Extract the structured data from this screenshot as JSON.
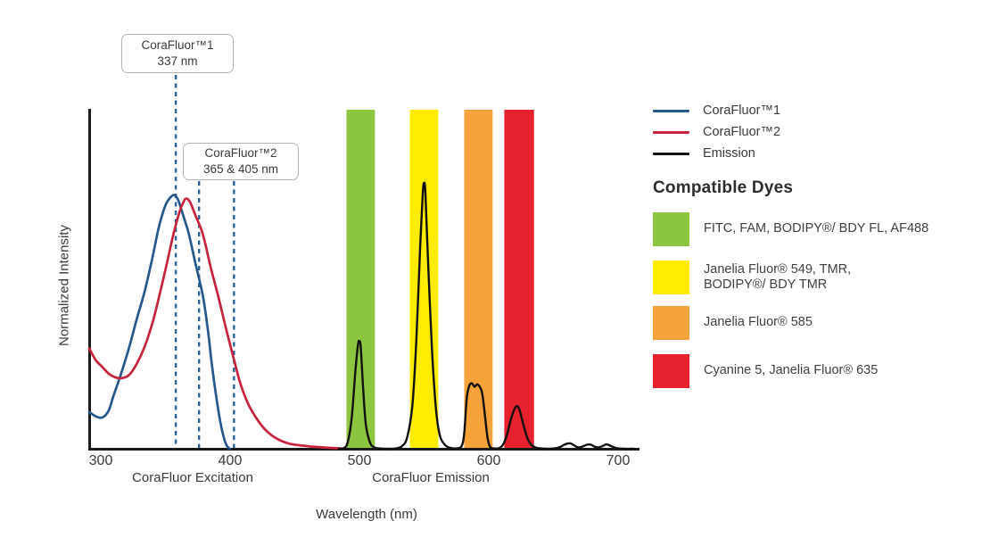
{
  "axes": {
    "y_label": "Normalized Intensity",
    "x_label": "Wavelength (nm)",
    "x_section_left": "CoraFluor Excitation",
    "x_section_right": "CoraFluor Emission",
    "x_ticks": [
      "300",
      "400",
      "500",
      "600",
      "700"
    ],
    "text_color": "#3a3a3a",
    "axis_color": "#1a1a1a"
  },
  "annotations": [
    {
      "title": "CoraFluor™1",
      "value": "337 nm"
    },
    {
      "title": "CoraFluor™2",
      "value": "365 & 405 nm"
    }
  ],
  "legend": {
    "items": [
      {
        "label": "CoraFluor™1",
        "color": "#25598E"
      },
      {
        "label": "CoraFluor™2",
        "color": "#C8233C"
      },
      {
        "label": "Emission",
        "color": "#111111"
      }
    ]
  },
  "compatible_dyes": {
    "title": "Compatible Dyes",
    "items": [
      {
        "name": "green-filter",
        "color": "#8CC540",
        "lines": [
          "FITC, FAM, BODIPY®/ BDY FL, AF488"
        ]
      },
      {
        "name": "yellow-filter",
        "color": "#FFEC00",
        "lines": [
          "Janelia Fluor® 549, TMR,",
          "BODIPY®/ BDY TMR"
        ]
      },
      {
        "name": "orange-filter",
        "color": "#F5A23B",
        "lines": [
          "Janelia Fluor® 585"
        ]
      },
      {
        "name": "red-filter",
        "color": "#E8212E",
        "lines": [
          "Cyanine 5, Janelia Fluor® 635"
        ]
      }
    ]
  },
  "chart_data": {
    "type": "line",
    "title": "",
    "xlabel": "Wavelength (nm)",
    "ylabel": "Normalized Intensity",
    "x_ticks_nm": [
      300,
      400,
      500,
      600,
      700
    ],
    "ylim": [
      0,
      1
    ],
    "grid": false,
    "dashed_guides": [
      {
        "x_nm": 358,
        "links_to": "CoraFluor™1 337 nm"
      },
      {
        "x_nm": 376,
        "links_to": "CoraFluor™2 365 nm"
      },
      {
        "x_nm": 403,
        "links_to": "CoraFluor™2 405 nm"
      }
    ],
    "filter_bands_nm": [
      {
        "name": "FITC, FAM, BODIPY®/ BDY FL, AF488",
        "color": "#8CC540",
        "from": 490,
        "to": 512
      },
      {
        "name": "Janelia Fluor® 549, TMR, BODIPY®/ BDY TMR",
        "color": "#FFEC00",
        "from": 539,
        "to": 561
      },
      {
        "name": "Janelia Fluor® 585",
        "color": "#F5A23B",
        "from": 581,
        "to": 603
      },
      {
        "name": "Cyanine 5, Janelia Fluor® 635",
        "color": "#E8212E",
        "from": 612,
        "to": 635
      }
    ],
    "series": [
      {
        "name": "CoraFluor™1 excitation",
        "color": "#25598E",
        "points": [
          [
            291,
            0.108
          ],
          [
            296,
            0.096
          ],
          [
            301,
            0.092
          ],
          [
            306,
            0.112
          ],
          [
            310,
            0.158
          ],
          [
            316,
            0.225
          ],
          [
            322,
            0.3
          ],
          [
            328,
            0.385
          ],
          [
            334,
            0.465
          ],
          [
            340,
            0.565
          ],
          [
            345,
            0.655
          ],
          [
            350,
            0.718
          ],
          [
            354,
            0.742
          ],
          [
            357,
            0.748
          ],
          [
            360,
            0.732
          ],
          [
            364,
            0.685
          ],
          [
            368,
            0.635
          ],
          [
            373,
            0.55
          ],
          [
            379,
            0.45
          ],
          [
            383,
            0.345
          ],
          [
            386,
            0.245
          ],
          [
            390,
            0.135
          ],
          [
            393,
            0.068
          ],
          [
            396,
            0.022
          ],
          [
            398,
            0.006
          ],
          [
            400,
            0
          ]
        ]
      },
      {
        "name": "CoraFluor™2 excitation",
        "color": "#C8233C",
        "points": [
          [
            291,
            0.297
          ],
          [
            296,
            0.262
          ],
          [
            301,
            0.242
          ],
          [
            306,
            0.222
          ],
          [
            311,
            0.211
          ],
          [
            316,
            0.208
          ],
          [
            322,
            0.218
          ],
          [
            328,
            0.252
          ],
          [
            334,
            0.302
          ],
          [
            340,
            0.372
          ],
          [
            345,
            0.447
          ],
          [
            351,
            0.545
          ],
          [
            356,
            0.63
          ],
          [
            361,
            0.7
          ],
          [
            364,
            0.728
          ],
          [
            366,
            0.738
          ],
          [
            369,
            0.728
          ],
          [
            373,
            0.69
          ],
          [
            379,
            0.632
          ],
          [
            385,
            0.535
          ],
          [
            391,
            0.447
          ],
          [
            397,
            0.352
          ],
          [
            403,
            0.263
          ],
          [
            408,
            0.192
          ],
          [
            414,
            0.132
          ],
          [
            420,
            0.092
          ],
          [
            426,
            0.061
          ],
          [
            432,
            0.04
          ],
          [
            438,
            0.026
          ],
          [
            444,
            0.017
          ],
          [
            450,
            0.012
          ],
          [
            457,
            0.009
          ],
          [
            464,
            0.006
          ],
          [
            472,
            0.004
          ],
          [
            480,
            0.002
          ],
          [
            486,
            0.001
          ]
        ]
      },
      {
        "name": "Emission",
        "color": "#111111",
        "points": [
          [
            484,
            0
          ],
          [
            488,
            0.002
          ],
          [
            491,
            0.02
          ],
          [
            494,
            0.09
          ],
          [
            497,
            0.235
          ],
          [
            499,
            0.31
          ],
          [
            500,
            0.316
          ],
          [
            501,
            0.3
          ],
          [
            503,
            0.17
          ],
          [
            505,
            0.07
          ],
          [
            508,
            0.02
          ],
          [
            511,
            0.005
          ],
          [
            515,
            0.001
          ],
          [
            521,
            0
          ],
          [
            528,
            0.001
          ],
          [
            533,
            0.008
          ],
          [
            537,
            0.035
          ],
          [
            541,
            0.13
          ],
          [
            544,
            0.32
          ],
          [
            547,
            0.6
          ],
          [
            549,
            0.755
          ],
          [
            550,
            0.784
          ],
          [
            551,
            0.755
          ],
          [
            553,
            0.56
          ],
          [
            556,
            0.3
          ],
          [
            559,
            0.125
          ],
          [
            562,
            0.042
          ],
          [
            566,
            0.012
          ],
          [
            570,
            0.003
          ],
          [
            575,
            0.001
          ],
          [
            579,
            0.008
          ],
          [
            581,
            0.045
          ],
          [
            583,
            0.15
          ],
          [
            585,
            0.186
          ],
          [
            587,
            0.193
          ],
          [
            589,
            0.183
          ],
          [
            591,
            0.19
          ],
          [
            593,
            0.183
          ],
          [
            595,
            0.162
          ],
          [
            597,
            0.1
          ],
          [
            599,
            0.034
          ],
          [
            601,
            0.006
          ],
          [
            604,
            0.001
          ],
          [
            608,
            0.002
          ],
          [
            611,
            0.012
          ],
          [
            614,
            0.04
          ],
          [
            617,
            0.085
          ],
          [
            620,
            0.118
          ],
          [
            622,
            0.126
          ],
          [
            624,
            0.112
          ],
          [
            627,
            0.068
          ],
          [
            630,
            0.03
          ],
          [
            633,
            0.011
          ],
          [
            636,
            0.004
          ],
          [
            640,
            0.001
          ],
          [
            645,
            0
          ],
          [
            651,
            0.001
          ],
          [
            655,
            0.005
          ],
          [
            659,
            0.013
          ],
          [
            663,
            0.016
          ],
          [
            666,
            0.01
          ],
          [
            669,
            0.004
          ],
          [
            672,
            0.006
          ],
          [
            676,
            0.012
          ],
          [
            679,
            0.012
          ],
          [
            682,
            0.006
          ],
          [
            685,
            0.004
          ],
          [
            688,
            0.008
          ],
          [
            691,
            0.013
          ],
          [
            694,
            0.009
          ],
          [
            697,
            0.004
          ],
          [
            700,
            0.001
          ],
          [
            705,
            0
          ],
          [
            712,
            0
          ]
        ]
      }
    ]
  }
}
